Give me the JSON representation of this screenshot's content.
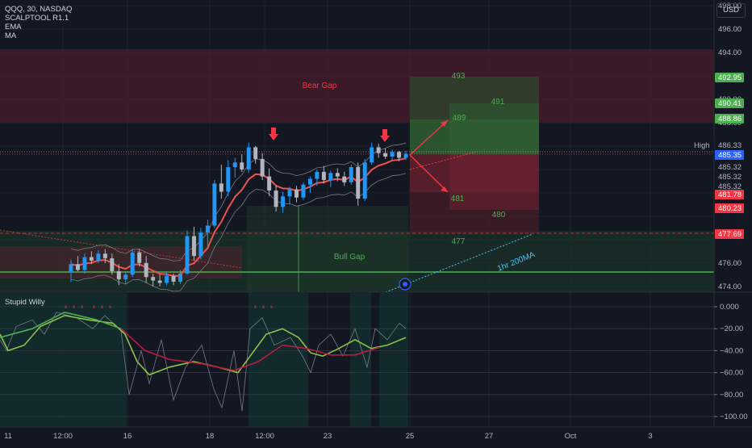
{
  "header": {
    "symbol_line": "QQQ, 30, NASDAQ",
    "indicators": [
      "SCALPTOOL R1.1",
      "EMA",
      "MA"
    ],
    "currency_button": "USD"
  },
  "oscillator": {
    "label": "Stupid Willy",
    "axis_ticks": [
      "0.000",
      "−20.00",
      "−40.00",
      "−60.00",
      "−80.00",
      "−100.00"
    ]
  },
  "price_axis": {
    "ticks": [
      "498.00",
      "496.00",
      "494.00",
      "492.00",
      "490.00",
      "488.00",
      "486.00",
      "485.32",
      "485.32",
      "485.32",
      "476.00",
      "474.00"
    ],
    "tags": [
      {
        "text": "492.95",
        "color": "#4caf50"
      },
      {
        "text": "490.41",
        "color": "#4caf50"
      },
      {
        "text": "488.86",
        "color": "#4caf50"
      },
      {
        "text": "486.33",
        "color": "#131722",
        "label": "High"
      },
      {
        "text": "485.35",
        "color": "#2962ff"
      },
      {
        "text": "481.78",
        "color": "#f23645"
      },
      {
        "text": "480.23",
        "color": "#f23645"
      },
      {
        "text": "477.69",
        "color": "#f23645"
      }
    ]
  },
  "time_axis": {
    "ticks": [
      "11",
      "12:00",
      "16",
      "18",
      "12:00",
      "23",
      "25",
      "27",
      "Oct",
      "3"
    ]
  },
  "annotations": {
    "bear_gap": "Bear Gap",
    "bull_gap": "Bull Gap",
    "ma200": "1hr 200MA",
    "levels": [
      "493",
      "491",
      "489",
      "481",
      "480",
      "477"
    ]
  },
  "colors": {
    "up": "#2196f3",
    "down": "#b2b5be",
    "bear": "#f23645",
    "bull": "#4caf50",
    "ema": "#ef5350"
  },
  "chart_data": {
    "type": "candlestick",
    "title": "QQQ, 30, NASDAQ",
    "ylim": [
      473.5,
      498.5
    ],
    "high": 486.33,
    "last": 485.35,
    "levels": {
      "target_1": 492.95,
      "target_2": 490.41,
      "target_3": 488.86,
      "stop_1": 481.78,
      "stop_2": 480.23,
      "stop_3": 477.69
    },
    "candles_approx": [
      [
        475.2,
        476.3,
        474.4,
        475.9
      ],
      [
        475.9,
        476.6,
        475.3,
        475.4
      ],
      [
        475.4,
        476.8,
        475.1,
        476.5
      ],
      [
        476.5,
        477.0,
        475.9,
        476.2
      ],
      [
        476.2,
        477.1,
        476.0,
        476.8
      ],
      [
        476.8,
        477.2,
        476.0,
        476.4
      ],
      [
        476.4,
        476.8,
        475.0,
        475.3
      ],
      [
        475.3,
        475.9,
        474.1,
        474.6
      ],
      [
        474.6,
        475.3,
        474.2,
        475.0
      ],
      [
        475.0,
        477.2,
        474.8,
        476.9
      ],
      [
        476.9,
        477.2,
        475.7,
        476.0
      ],
      [
        476.0,
        476.6,
        474.3,
        474.8
      ],
      [
        474.8,
        475.1,
        474.0,
        474.5
      ],
      [
        474.5,
        475.0,
        474.0,
        474.3
      ],
      [
        474.3,
        475.2,
        474.1,
        474.9
      ],
      [
        474.9,
        475.1,
        474.1,
        474.4
      ],
      [
        474.4,
        475.4,
        474.2,
        475.1
      ],
      [
        475.1,
        478.8,
        475.0,
        478.3
      ],
      [
        478.3,
        479.1,
        476.2,
        476.6
      ],
      [
        476.6,
        479.0,
        476.3,
        478.6
      ],
      [
        478.6,
        479.7,
        477.3,
        479.2
      ],
      [
        479.2,
        483.1,
        479.0,
        482.8
      ],
      [
        482.8,
        484.4,
        481.5,
        482.1
      ],
      [
        482.1,
        484.8,
        481.7,
        484.2
      ],
      [
        484.2,
        485.0,
        483.3,
        484.6
      ],
      [
        484.6,
        485.3,
        483.8,
        484.0
      ],
      [
        484.0,
        486.3,
        483.7,
        485.9
      ],
      [
        485.9,
        486.0,
        484.5,
        484.9
      ],
      [
        484.9,
        485.4,
        483.1,
        483.4
      ],
      [
        483.4,
        484.1,
        481.7,
        482.2
      ],
      [
        482.2,
        482.6,
        480.4,
        480.8
      ],
      [
        480.8,
        482.1,
        480.3,
        481.7
      ],
      [
        481.7,
        482.5,
        481.0,
        482.3
      ],
      [
        482.3,
        482.6,
        481.2,
        481.6
      ],
      [
        481.6,
        482.9,
        481.4,
        482.7
      ],
      [
        482.7,
        483.4,
        482.0,
        483.2
      ],
      [
        483.2,
        484.0,
        482.6,
        483.8
      ],
      [
        483.8,
        484.3,
        482.8,
        483.1
      ],
      [
        483.1,
        483.9,
        482.5,
        483.7
      ],
      [
        483.7,
        484.1,
        483.0,
        483.4
      ],
      [
        483.4,
        483.8,
        482.6,
        482.9
      ],
      [
        482.9,
        484.4,
        482.7,
        484.2
      ],
      [
        484.2,
        484.6,
        480.9,
        481.5
      ],
      [
        481.5,
        484.9,
        481.3,
        484.6
      ],
      [
        484.6,
        486.3,
        484.4,
        485.9
      ],
      [
        485.9,
        486.2,
        485.0,
        485.4
      ],
      [
        485.4,
        485.8,
        484.9,
        485.1
      ],
      [
        485.1,
        485.7,
        484.8,
        485.5
      ],
      [
        485.5,
        485.6,
        484.7,
        485.0
      ],
      [
        485.0,
        485.6,
        484.8,
        485.35
      ]
    ]
  }
}
